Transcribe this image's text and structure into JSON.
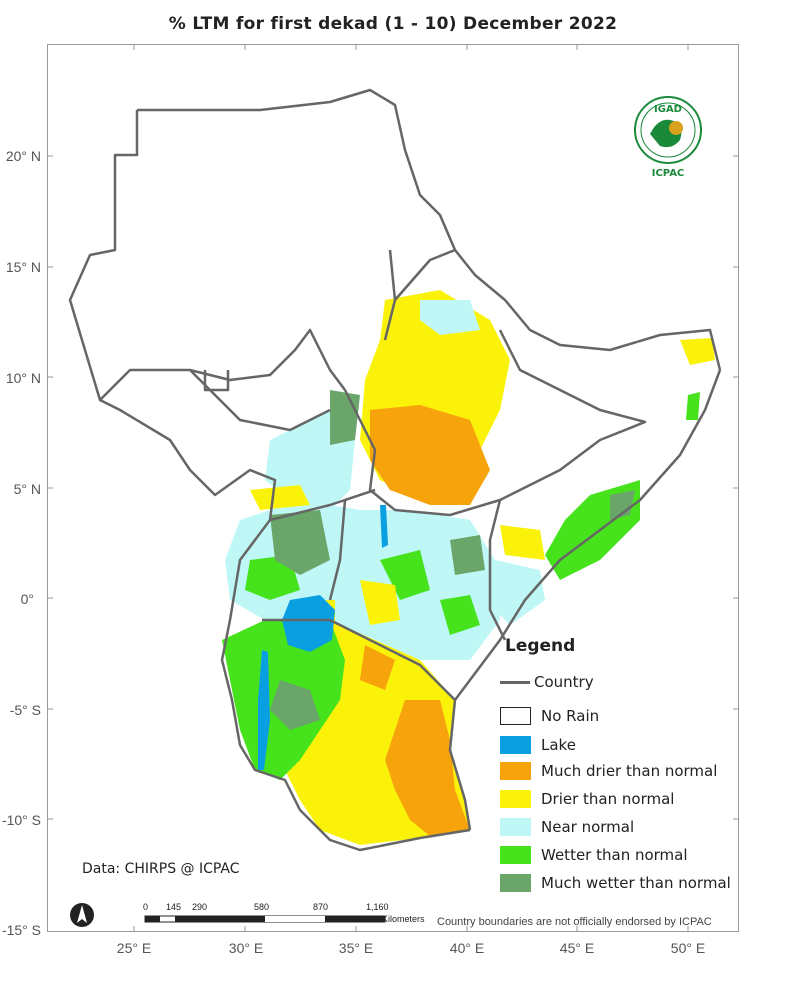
{
  "title": "% LTM    for  first  dekad (1 - 10)  December 2022",
  "latitudes": [
    "20° N",
    "15° N",
    "10° N",
    "5° N",
    "0°",
    "-5° S",
    "-10° S",
    "-15° S"
  ],
  "longitudes": [
    "25° E",
    "30° E",
    "35° E",
    "40° E",
    "45° E",
    "50° E"
  ],
  "legend": {
    "title": "Legend",
    "country": "Country",
    "items": [
      {
        "label": "No Rain",
        "color": "#ffffff"
      },
      {
        "label": "Lake",
        "color": "#0a9fe0"
      },
      {
        "label": "Much drier than normal",
        "color": "#f7a30c"
      },
      {
        "label": "Drier than normal",
        "color": "#fbf20a"
      },
      {
        "label": "Near normal",
        "color": "#bff7f7"
      },
      {
        "label": "Wetter than normal",
        "color": "#46e31c"
      },
      {
        "label": "Much wetter than normal",
        "color": "#6aa56a"
      }
    ]
  },
  "credit": "Data: CHIRPS @ ICPAC",
  "note": "Country boundaries are not officially endorsed by ICPAC",
  "scale": {
    "ticks": [
      "0",
      "145",
      "290",
      "580",
      "870",
      "1,160"
    ],
    "unit": "Kilometers"
  },
  "logo": {
    "top": "IGAD",
    "bottom": "ICPAC",
    "accent": "#1a8a3a",
    "gold": "#d9a21e"
  }
}
